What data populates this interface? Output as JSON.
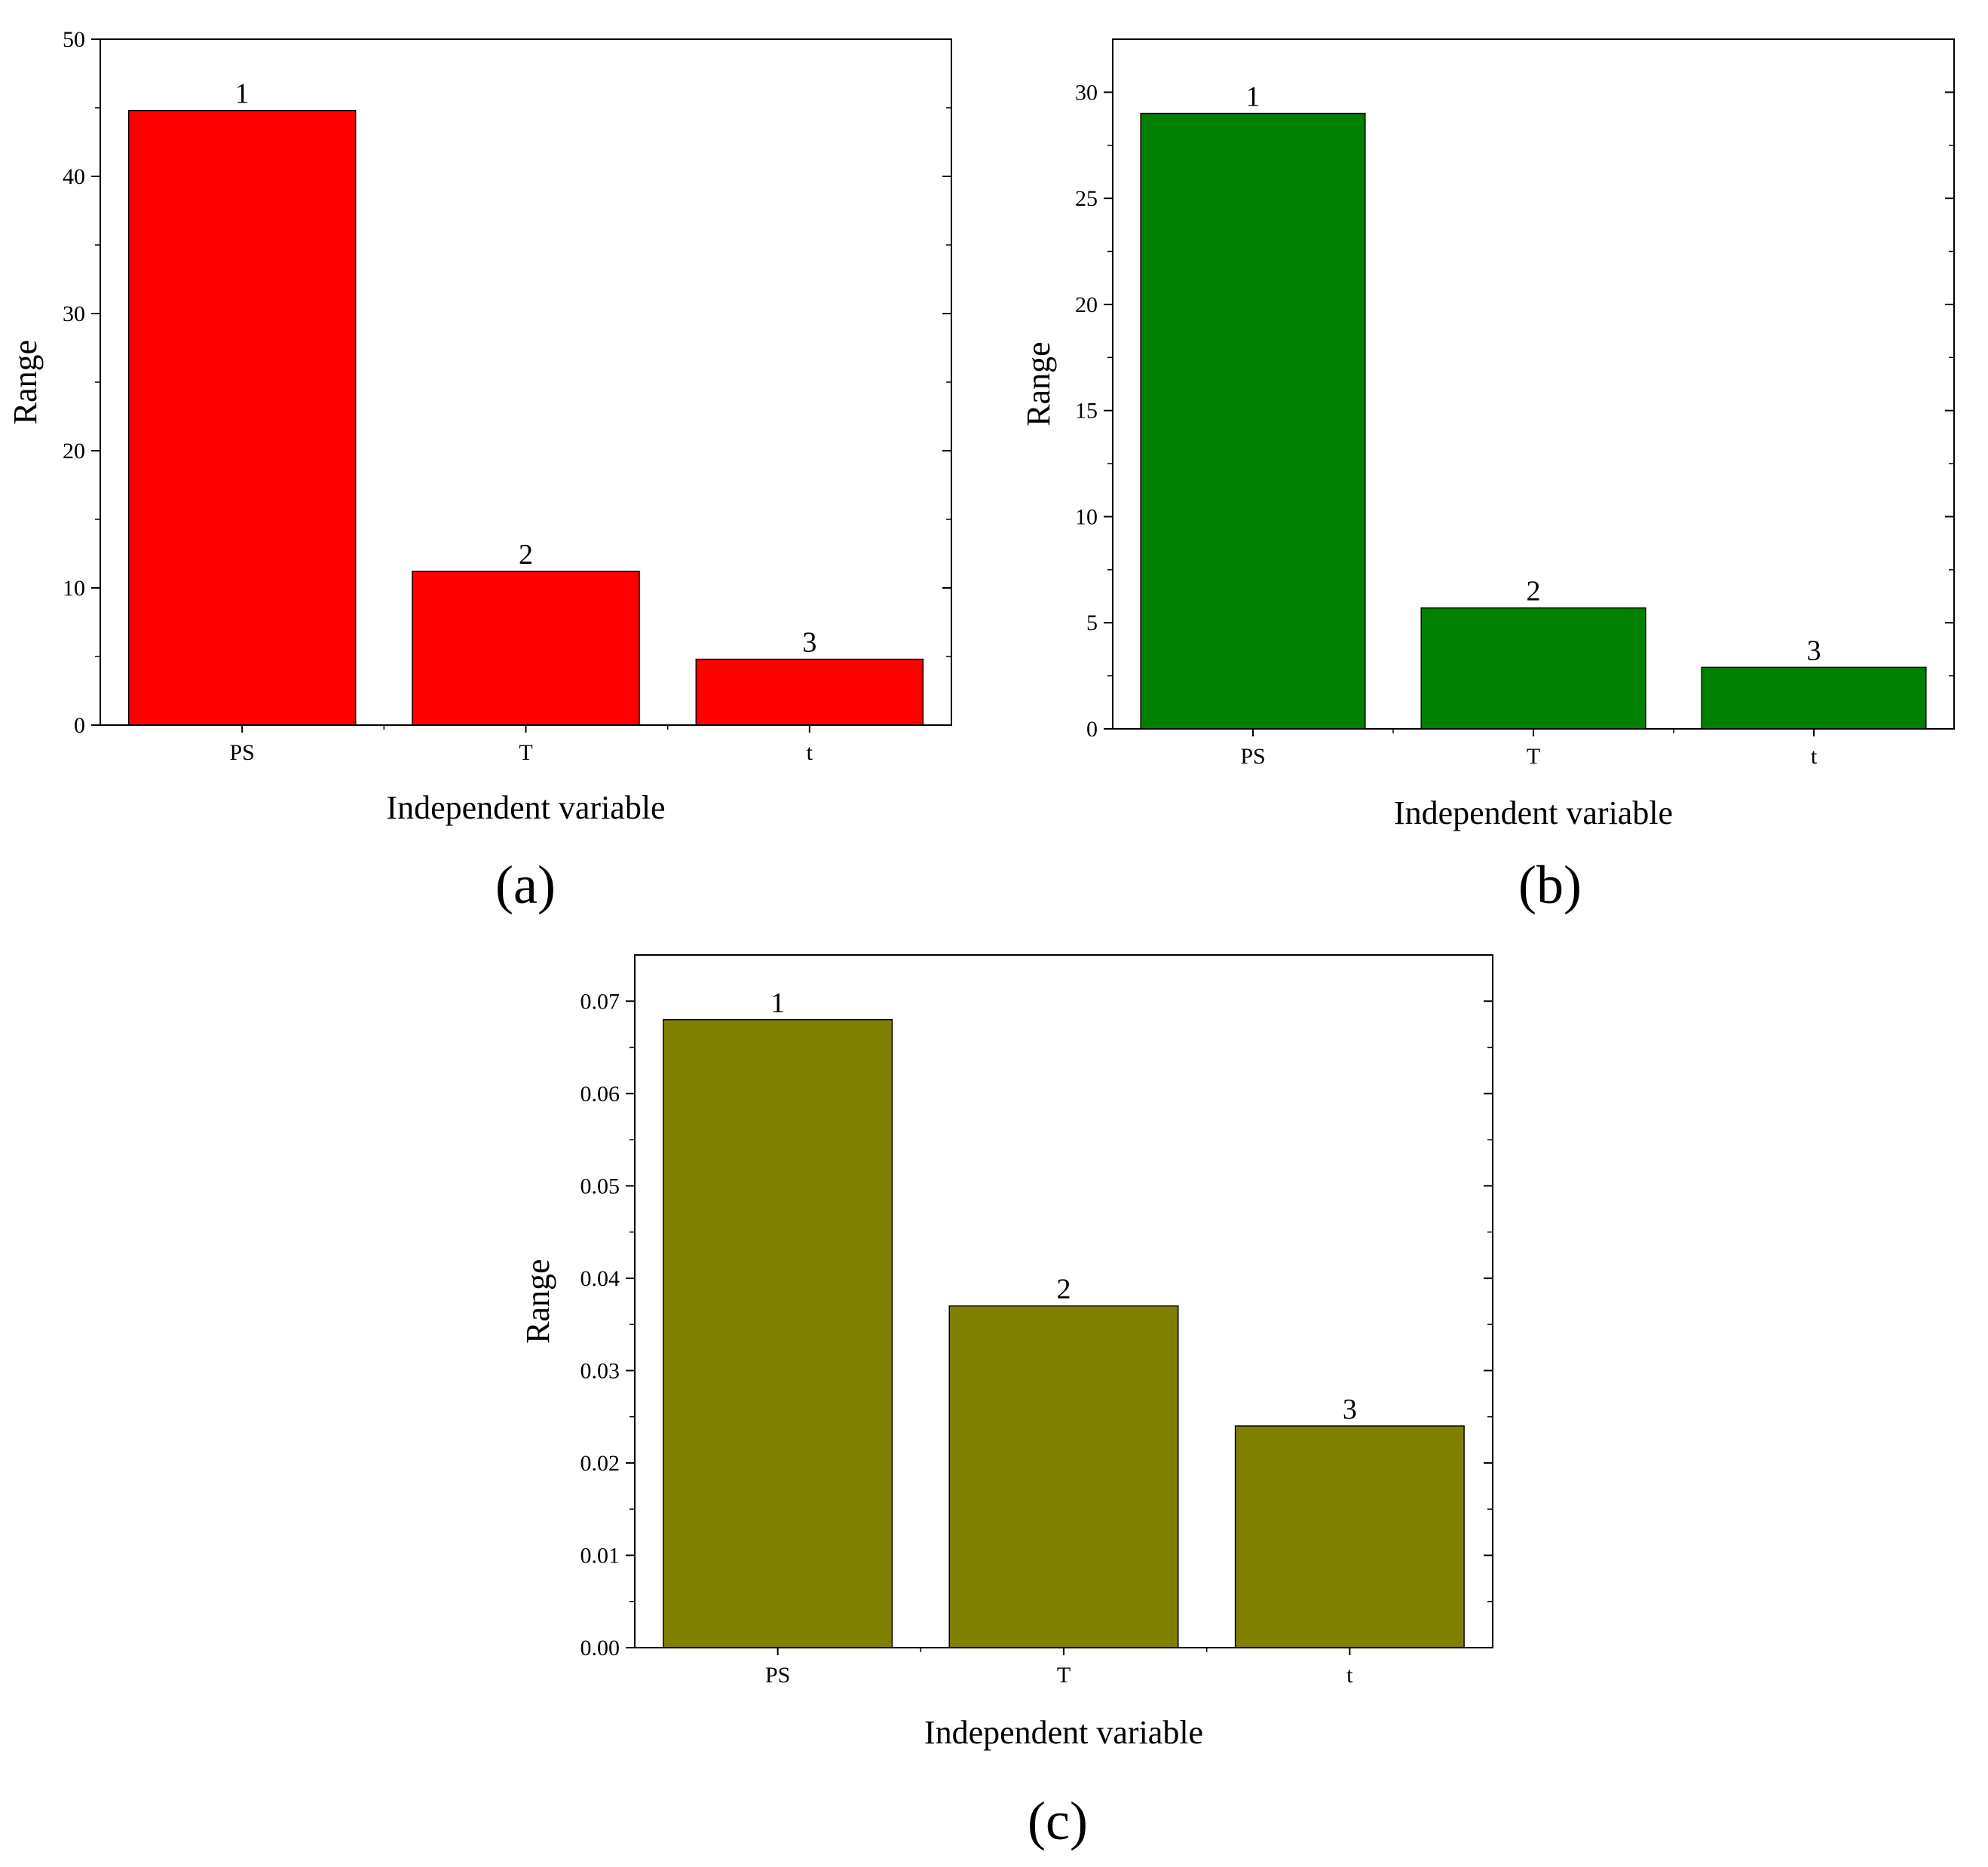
{
  "chart_data": [
    {
      "id": "a",
      "type": "bar",
      "panel_label": "(a)",
      "categories": [
        "PS",
        "T",
        "t"
      ],
      "values": [
        44.8,
        11.2,
        4.8
      ],
      "data_labels": [
        "1",
        "2",
        "3"
      ],
      "bar_color": "#ff0000",
      "xlabel": "Independent variable",
      "ylabel": "Range",
      "ylim": [
        0,
        50
      ],
      "yticks": [
        0,
        10,
        20,
        30,
        40,
        50
      ],
      "ytick_labels": [
        "0",
        "10",
        "20",
        "30",
        "40",
        "50"
      ],
      "grid": false
    },
    {
      "id": "b",
      "type": "bar",
      "panel_label": "(b)",
      "categories": [
        "PS",
        "T",
        "t"
      ],
      "values": [
        29.0,
        5.7,
        2.9
      ],
      "data_labels": [
        "1",
        "2",
        "3"
      ],
      "bar_color": "#008000",
      "xlabel": "Independent variable",
      "ylabel": "Range",
      "ylim": [
        0,
        32.5
      ],
      "yticks": [
        0,
        5,
        10,
        15,
        20,
        25,
        30
      ],
      "ytick_labels": [
        "0",
        "5",
        "10",
        "15",
        "20",
        "25",
        "30"
      ],
      "grid": false
    },
    {
      "id": "c",
      "type": "bar",
      "panel_label": "(c)",
      "categories": [
        "PS",
        "T",
        "t"
      ],
      "values": [
        0.068,
        0.037,
        0.024
      ],
      "data_labels": [
        "1",
        "2",
        "3"
      ],
      "bar_color": "#808000",
      "xlabel": "Independent variable",
      "ylabel": "Range",
      "ylim": [
        0,
        0.075
      ],
      "yticks": [
        0,
        0.01,
        0.02,
        0.03,
        0.04,
        0.05,
        0.06,
        0.07
      ],
      "ytick_labels": [
        "0.00",
        "0.01",
        "0.02",
        "0.03",
        "0.04",
        "0.05",
        "0.06",
        "0.07"
      ],
      "grid": false
    }
  ]
}
